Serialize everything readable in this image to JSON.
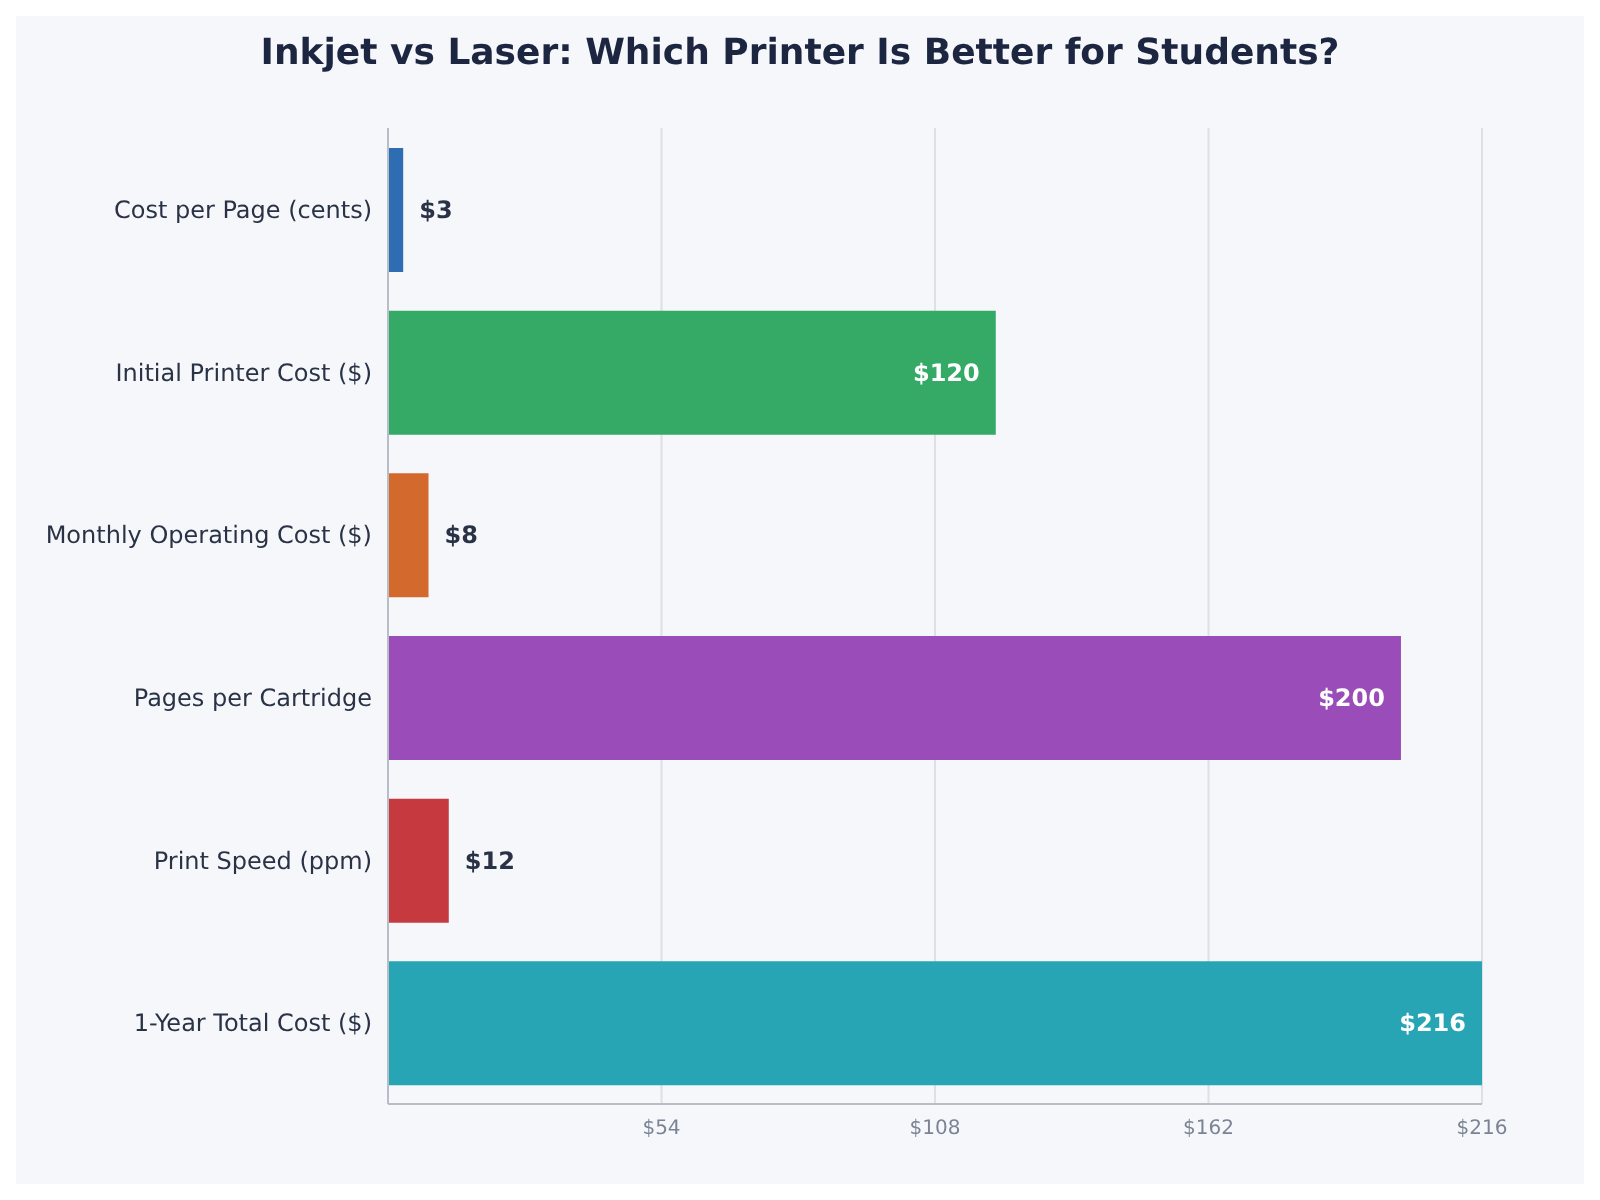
{
  "chart_data": {
    "type": "bar",
    "orientation": "horizontal",
    "title": "Inkjet vs Laser: Which Printer Is Better for Students?",
    "categories": [
      "Cost per Page (cents)",
      "Initial Printer Cost ($)",
      "Monthly Operating Cost ($)",
      "Pages per Cartridge",
      "Print Speed (ppm)",
      "1-Year Total Cost ($)"
    ],
    "values": [
      3,
      120,
      8,
      200,
      12,
      216
    ],
    "colors": [
      "#2f6db3",
      "#35aa67",
      "#d4692e",
      "#9a4db8",
      "#c63a3f",
      "#27a5b5"
    ],
    "value_labels": [
      "$3",
      "$120",
      "$8",
      "$200",
      "$12",
      "$216"
    ],
    "xlim": [
      0,
      216
    ],
    "xticks": [
      {
        "value": 54,
        "label": "$54"
      },
      {
        "value": 108,
        "label": "$108"
      },
      {
        "value": 162,
        "label": "$162"
      },
      {
        "value": 216,
        "label": "$216"
      }
    ],
    "grid": "x"
  }
}
